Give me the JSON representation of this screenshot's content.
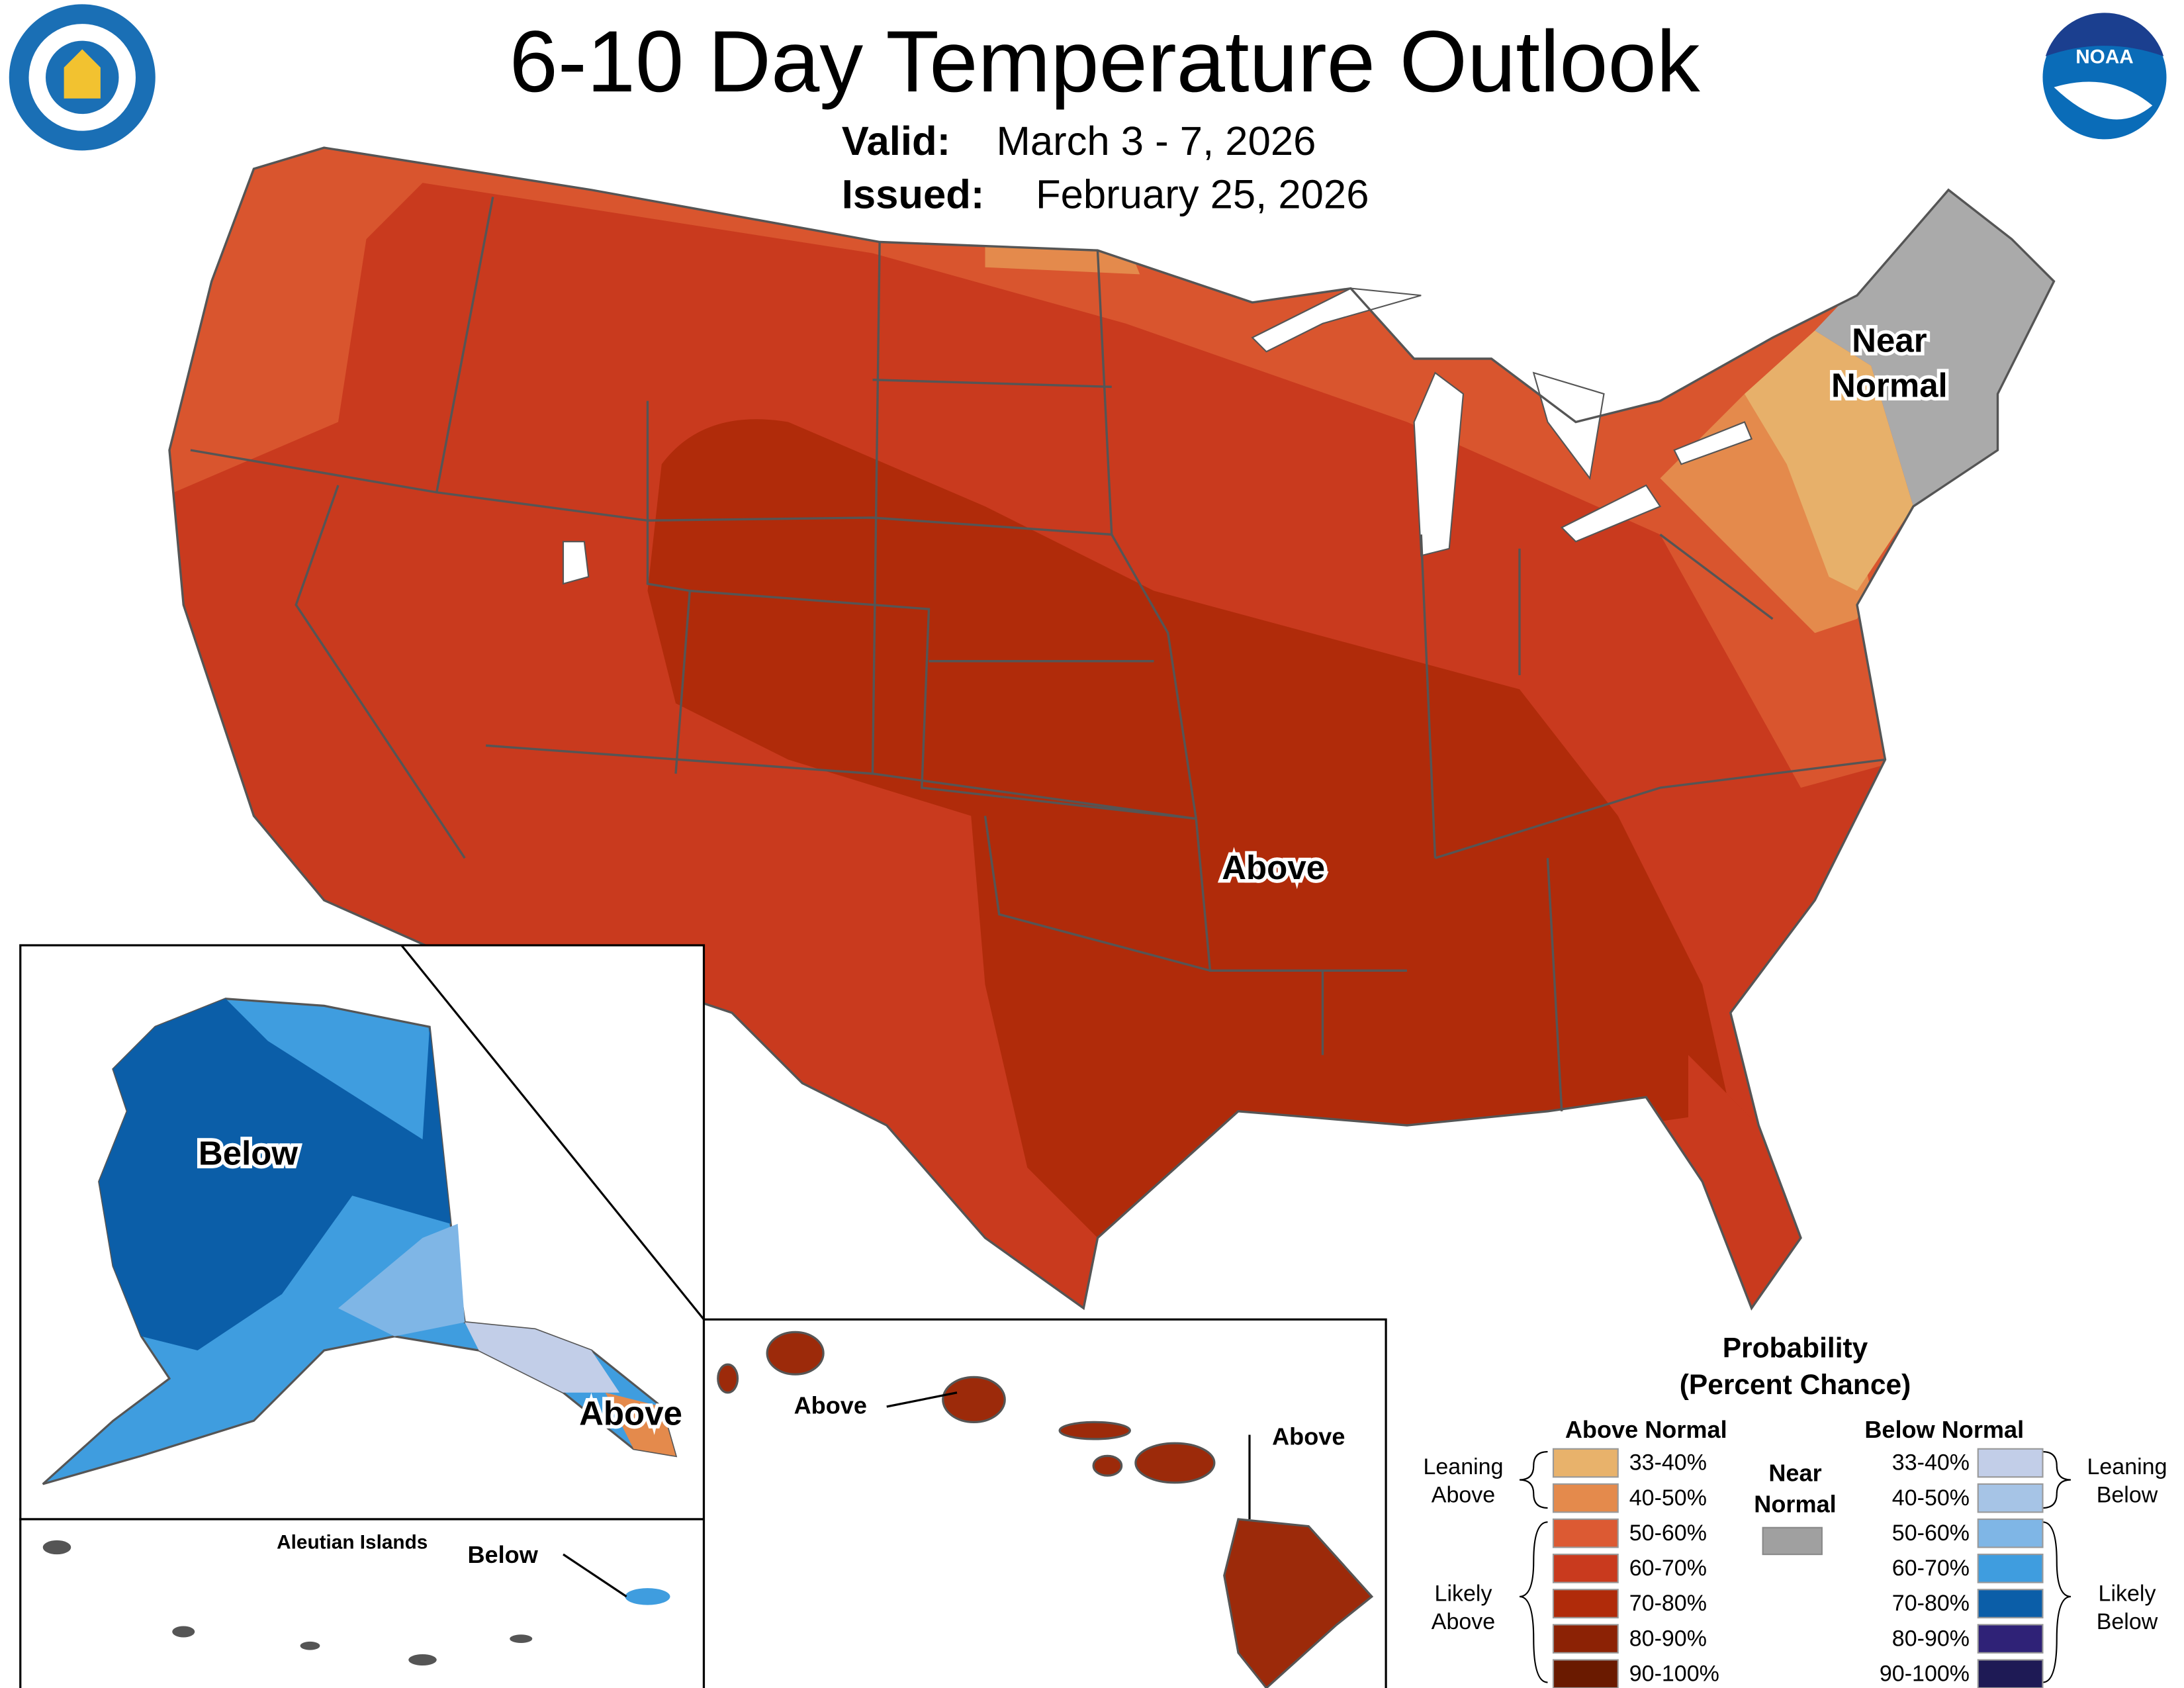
{
  "header": {
    "title": "6-10 Day Temperature Outlook",
    "valid_label": "Valid:",
    "valid": "March 3 - 7, 2026",
    "issued_label": "Issued:",
    "issued": "February 25, 2026",
    "noaa_logo": "NOAA"
  },
  "map_labels": {
    "conus_above": "Above",
    "conus_near": [
      "Near",
      "Normal"
    ],
    "alaska_below": "Below",
    "alaska_above": "Above",
    "aleutian_title": "Aleutian Islands",
    "aleutian_below": "Below",
    "hawaii_above_west": "Above",
    "hawaii_above_east": "Above"
  },
  "legend": {
    "title": [
      "Probability",
      "(Percent Chance)"
    ],
    "above_header": "Above Normal",
    "below_header": "Below Normal",
    "near": [
      "Near",
      "Normal"
    ],
    "above_bins": [
      "33-40%",
      "40-50%",
      "50-60%",
      "60-70%",
      "70-80%",
      "80-90%",
      "90-100%"
    ],
    "below_bins": [
      "33-40%",
      "40-50%",
      "50-60%",
      "60-70%",
      "70-80%",
      "80-90%",
      "90-100%"
    ],
    "leaning_above": [
      "Leaning",
      "Above"
    ],
    "likely_above": [
      "Likely",
      "Above"
    ],
    "leaning_below": [
      "Leaning",
      "Below"
    ],
    "likely_below": [
      "Likely",
      "Below"
    ]
  }
}
